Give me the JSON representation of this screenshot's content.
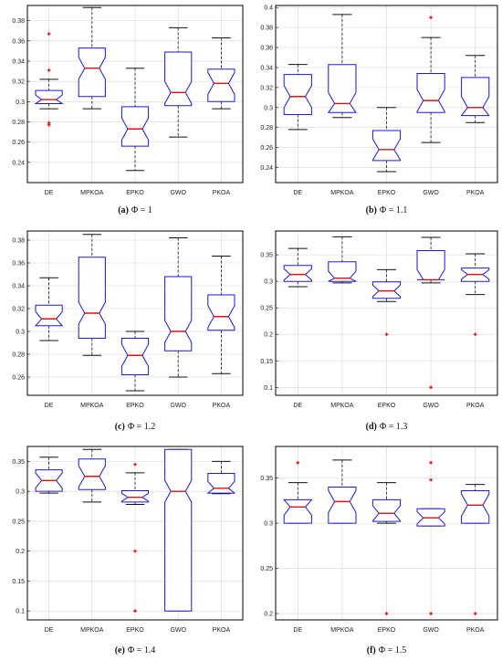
{
  "figure": {
    "panels": 6
  },
  "colors": {
    "box": "#1a1ad0",
    "median": "#e01010",
    "whisker": "#111111",
    "outlier": "#e01010",
    "grid": "#d6d6d6",
    "frame": "#000000"
  },
  "chart_data": [
    {
      "type": "box",
      "panel": "a",
      "caption_label": "(a)",
      "caption_text": "Φ = 1",
      "categories": [
        "DE",
        "MPKOA",
        "EPKO",
        "GWO",
        "PKOA"
      ],
      "ylim": [
        0.22,
        0.395
      ],
      "yticks": [
        "0.24",
        "0.26",
        "0.28",
        "0.3",
        "0.32",
        "0.34",
        "0.36",
        "0.38"
      ],
      "boxes": [
        {
          "min": 0.293,
          "q1": 0.298,
          "median": 0.302,
          "q3": 0.311,
          "max": 0.322,
          "outliers": [
            0.367,
            0.331,
            0.279,
            0.277
          ]
        },
        {
          "min": 0.293,
          "q1": 0.305,
          "median": 0.333,
          "q3": 0.353,
          "max": 0.393,
          "outliers": []
        },
        {
          "min": 0.232,
          "q1": 0.256,
          "median": 0.273,
          "q3": 0.295,
          "max": 0.333,
          "outliers": []
        },
        {
          "min": 0.265,
          "q1": 0.296,
          "median": 0.309,
          "q3": 0.349,
          "max": 0.373,
          "outliers": []
        },
        {
          "min": 0.293,
          "q1": 0.3,
          "median": 0.318,
          "q3": 0.332,
          "max": 0.363,
          "outliers": []
        }
      ]
    },
    {
      "type": "box",
      "panel": "b",
      "caption_label": "(b)",
      "caption_text": "Φ = 1.1",
      "categories": [
        "DE",
        "MPKOA",
        "EPKO",
        "GWO",
        "PKOA"
      ],
      "ylim": [
        0.225,
        0.402
      ],
      "yticks": [
        "0.24",
        "0.26",
        "0.28",
        "0.3",
        "0.32",
        "0.34",
        "0.36",
        "0.38",
        "0.4"
      ],
      "boxes": [
        {
          "min": 0.278,
          "q1": 0.293,
          "median": 0.311,
          "q3": 0.333,
          "max": 0.343,
          "outliers": []
        },
        {
          "min": 0.29,
          "q1": 0.295,
          "median": 0.304,
          "q3": 0.343,
          "max": 0.393,
          "outliers": []
        },
        {
          "min": 0.236,
          "q1": 0.247,
          "median": 0.258,
          "q3": 0.277,
          "max": 0.3,
          "outliers": []
        },
        {
          "min": 0.265,
          "q1": 0.295,
          "median": 0.307,
          "q3": 0.334,
          "max": 0.37,
          "outliers": [
            0.39
          ]
        },
        {
          "min": 0.285,
          "q1": 0.292,
          "median": 0.3,
          "q3": 0.33,
          "max": 0.352,
          "outliers": []
        }
      ]
    },
    {
      "type": "box",
      "panel": "c",
      "caption_label": "(c)",
      "caption_text": "Φ = 1.2",
      "categories": [
        "DE",
        "MPKOA",
        "EPKO",
        "GWO",
        "PKOA"
      ],
      "ylim": [
        0.244,
        0.388
      ],
      "yticks": [
        "0.26",
        "0.28",
        "0.3",
        "0.32",
        "0.34",
        "0.36",
        "0.38"
      ],
      "boxes": [
        {
          "min": 0.292,
          "q1": 0.305,
          "median": 0.311,
          "q3": 0.323,
          "max": 0.347,
          "outliers": []
        },
        {
          "min": 0.279,
          "q1": 0.294,
          "median": 0.316,
          "q3": 0.365,
          "max": 0.385,
          "outliers": []
        },
        {
          "min": 0.248,
          "q1": 0.262,
          "median": 0.279,
          "q3": 0.294,
          "max": 0.3,
          "outliers": []
        },
        {
          "min": 0.26,
          "q1": 0.283,
          "median": 0.3,
          "q3": 0.348,
          "max": 0.382,
          "outliers": []
        },
        {
          "min": 0.263,
          "q1": 0.301,
          "median": 0.313,
          "q3": 0.332,
          "max": 0.366,
          "outliers": []
        }
      ]
    },
    {
      "type": "box",
      "panel": "d",
      "caption_label": "(d)",
      "caption_text": "Φ = 1.3",
      "categories": [
        "DE",
        "MPKOA",
        "EPKO",
        "GWO",
        "PKOA"
      ],
      "ylim": [
        0.085,
        0.395
      ],
      "yticks": [
        "0.1",
        "0.15",
        "0.2",
        "0.25",
        "0.3",
        "0.35"
      ],
      "boxes": [
        {
          "min": 0.29,
          "q1": 0.3,
          "median": 0.313,
          "q3": 0.33,
          "max": 0.362,
          "outliers": []
        },
        {
          "min": 0.297,
          "q1": 0.3,
          "median": 0.306,
          "q3": 0.337,
          "max": 0.384,
          "outliers": []
        },
        {
          "min": 0.262,
          "q1": 0.268,
          "median": 0.282,
          "q3": 0.299,
          "max": 0.322,
          "outliers": [
            0.2
          ]
        },
        {
          "min": 0.297,
          "q1": 0.303,
          "median": 0.303,
          "q3": 0.358,
          "max": 0.383,
          "outliers": [
            0.1
          ]
        },
        {
          "min": 0.275,
          "q1": 0.3,
          "median": 0.313,
          "q3": 0.325,
          "max": 0.352,
          "outliers": [
            0.2
          ]
        }
      ]
    },
    {
      "type": "box",
      "panel": "e",
      "caption_label": "(e)",
      "caption_text": "Φ = 1.4",
      "categories": [
        "DE",
        "MPKOA",
        "EPKO",
        "GWO",
        "PKOA"
      ],
      "ylim": [
        0.085,
        0.375
      ],
      "yticks": [
        "0.1",
        "0.15",
        "0.2",
        "0.25",
        "0.3",
        "0.35"
      ],
      "boxes": [
        {
          "min": 0.297,
          "q1": 0.3,
          "median": 0.318,
          "q3": 0.336,
          "max": 0.357,
          "outliers": []
        },
        {
          "min": 0.282,
          "q1": 0.303,
          "median": 0.325,
          "q3": 0.354,
          "max": 0.37,
          "outliers": []
        },
        {
          "min": 0.278,
          "q1": 0.282,
          "median": 0.29,
          "q3": 0.301,
          "max": 0.331,
          "outliers": [
            0.345,
            0.2,
            0.1
          ]
        },
        {
          "min": 0.1,
          "q1": 0.1,
          "median": 0.3,
          "q3": 0.37,
          "max": 0.37,
          "outliers": []
        },
        {
          "min": 0.296,
          "q1": 0.297,
          "median": 0.305,
          "q3": 0.33,
          "max": 0.35,
          "outliers": []
        }
      ]
    },
    {
      "type": "box",
      "panel": "f",
      "caption_label": "(f)",
      "caption_text": "Φ = 1.5",
      "categories": [
        "DE",
        "MPKOA",
        "EPKO",
        "GWO",
        "PKOA"
      ],
      "ylim": [
        0.193,
        0.385
      ],
      "yticks": [
        "0.2",
        "0.25",
        "0.3",
        "0.35"
      ],
      "boxes": [
        {
          "min": 0.3,
          "q1": 0.3,
          "median": 0.318,
          "q3": 0.326,
          "max": 0.345,
          "outliers": [
            0.367
          ]
        },
        {
          "min": 0.3,
          "q1": 0.3,
          "median": 0.324,
          "q3": 0.34,
          "max": 0.37,
          "outliers": []
        },
        {
          "min": 0.3,
          "q1": 0.302,
          "median": 0.311,
          "q3": 0.326,
          "max": 0.345,
          "outliers": [
            0.2
          ]
        },
        {
          "min": 0.297,
          "q1": 0.297,
          "median": 0.306,
          "q3": 0.316,
          "max": 0.316,
          "outliers": [
            0.367,
            0.348,
            0.2
          ]
        },
        {
          "min": 0.3,
          "q1": 0.3,
          "median": 0.32,
          "q3": 0.336,
          "max": 0.343,
          "outliers": [
            0.2
          ]
        }
      ]
    }
  ]
}
